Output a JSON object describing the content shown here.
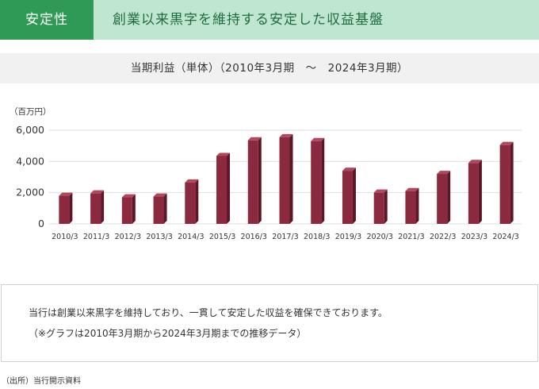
{
  "header": {
    "tag": "安定性",
    "title": "創業以来黒字を維持する安定した収益基盤"
  },
  "chart_data": {
    "type": "bar",
    "title": "当期利益（単体）（2010年3月期　～　2024年3月期）",
    "unit_label": "（百万円）",
    "categories": [
      "2010/3",
      "2011/3",
      "2012/3",
      "2013/3",
      "2014/3",
      "2015/3",
      "2016/3",
      "2017/3",
      "2018/3",
      "2019/3",
      "2020/3",
      "2021/3",
      "2022/3",
      "2023/3",
      "2024/3"
    ],
    "values": [
      1800,
      1950,
      1700,
      1750,
      2650,
      4350,
      5350,
      5550,
      5300,
      3400,
      2000,
      2100,
      3200,
      3900,
      5050
    ],
    "ylim": [
      0,
      6000
    ],
    "yticks": [
      0,
      2000,
      4000,
      6000
    ],
    "ytick_labels": [
      "0",
      "2,000",
      "4,000",
      "6,000"
    ],
    "grid": true,
    "colors": {
      "bar_front": "#8b2a3f",
      "bar_side": "#5c1627",
      "bar_top": "#b0485d",
      "grid": "#dddddd"
    }
  },
  "note": {
    "line1": "当行は創業以来黒字を維持しており、一貫して安定した収益を確保できております。",
    "line2": "（※グラフは2010年3月期から2024年3月期までの推移データ）"
  },
  "source": "（出所）当行開示資料"
}
